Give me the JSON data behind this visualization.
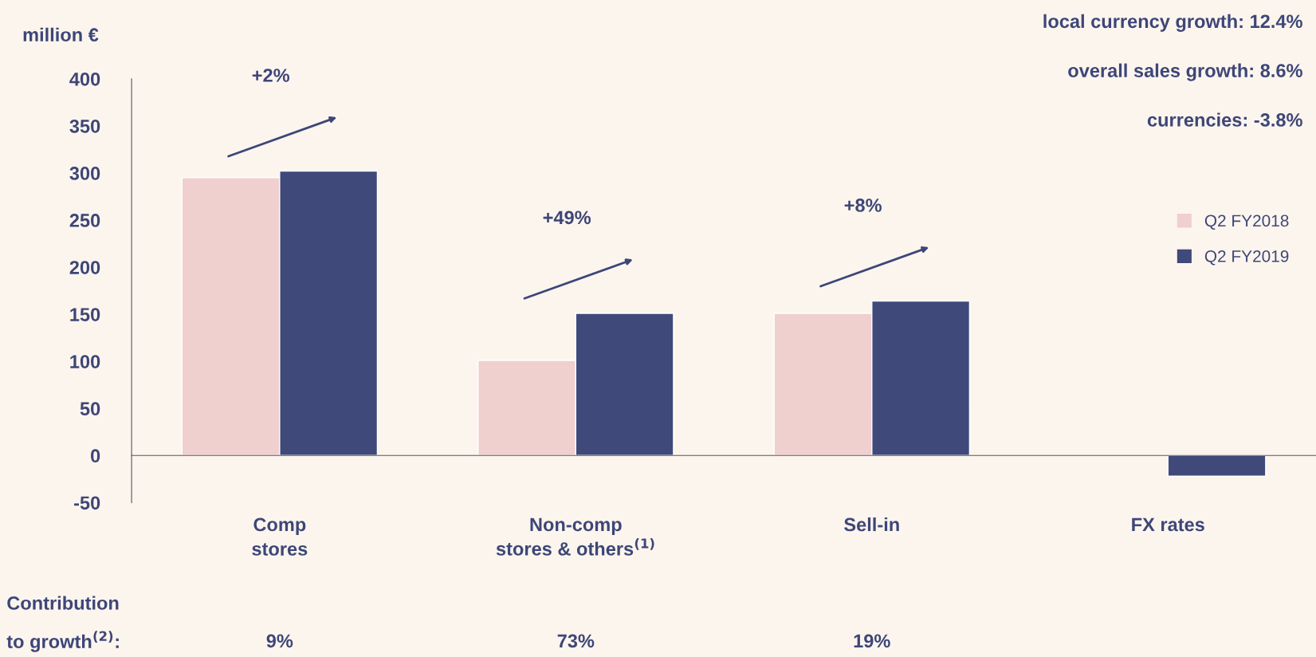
{
  "chart_data": {
    "type": "bar",
    "ylabel": "million €",
    "categories": [
      "Comp\nstores",
      "Non-comp\nstores & others$^{(1)}$",
      "Sell-in",
      "FX rates"
    ],
    "series": [
      {
        "name": "Q2 FY2018",
        "color": "#f0cfcf",
        "values": [
          295,
          101,
          151,
          null
        ]
      },
      {
        "name": "Q2 FY2019",
        "color": "#3f4a7a",
        "values": [
          302,
          151,
          164,
          -22
        ]
      }
    ],
    "ylim": [
      -50,
      400
    ],
    "yticks": [
      -50,
      0,
      50,
      100,
      150,
      200,
      250,
      300,
      350,
      400
    ],
    "legend": "right",
    "annotations": [
      "local currency growth: 12.4%",
      "overall sales growth: 8.6%",
      "currencies: -3.8%",
      "Contribution\nto growth$^{(2)}$:",
      "9%",
      "73%",
      "19%",
      "+2%",
      "+49%",
      "+8%"
    ]
  }
}
